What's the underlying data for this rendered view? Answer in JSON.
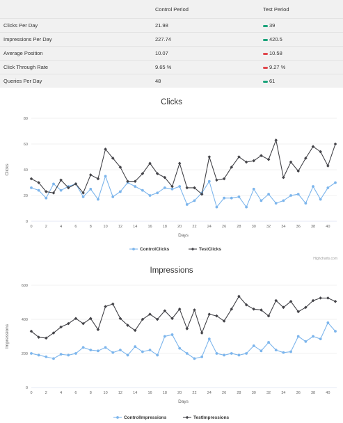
{
  "summary": {
    "headers": {
      "metric": "",
      "control": "Control Period",
      "test": "Test Period"
    },
    "rows": [
      {
        "metric": "Clicks Per Day",
        "control": "21.98",
        "test": "39",
        "status_color": "#1aa37a"
      },
      {
        "metric": "Impressions Per Day",
        "control": "227.74",
        "test": "420.5",
        "status_color": "#1aa37a"
      },
      {
        "metric": "Average Position",
        "control": "10.07",
        "test": "10.58",
        "status_color": "#e0474c"
      },
      {
        "metric": "Click Through Rate",
        "control": "9.65 %",
        "test": "9.27 %",
        "status_color": "#e0474c"
      },
      {
        "metric": "Queries Per Day",
        "control": "48",
        "test": "61",
        "status_color": "#1aa37a"
      }
    ]
  },
  "credits": "Highcharts.com",
  "chart_data": [
    {
      "type": "line",
      "title": "Clicks",
      "xlabel": "Days",
      "ylabel": "Clicks",
      "xlim": [
        0,
        41
      ],
      "ylim": [
        0,
        80
      ],
      "xticks": [
        0,
        2,
        4,
        6,
        8,
        10,
        12,
        14,
        16,
        18,
        20,
        22,
        24,
        26,
        28,
        30,
        32,
        34,
        36,
        38,
        40
      ],
      "yticks": [
        0,
        20,
        40,
        60,
        80
      ],
      "grid": true,
      "legend": "bottom-center",
      "x": [
        0,
        1,
        2,
        3,
        4,
        5,
        6,
        7,
        8,
        9,
        10,
        11,
        12,
        13,
        14,
        15,
        16,
        17,
        18,
        19,
        20,
        21,
        22,
        23,
        24,
        25,
        26,
        27,
        28,
        29,
        30,
        31,
        32,
        33,
        34,
        35,
        36,
        37,
        38,
        39,
        40,
        41
      ],
      "series": [
        {
          "name": "ControlClicks",
          "color": "#7cb5ec",
          "marker": "circle",
          "values": [
            26,
            24,
            18,
            29,
            24,
            27,
            29,
            19,
            25,
            17,
            35,
            19,
            23,
            30,
            27,
            24,
            20,
            22,
            26,
            25,
            27,
            13,
            16,
            22,
            31,
            11,
            18,
            18,
            19,
            11,
            25,
            16,
            21,
            14,
            16,
            20,
            21,
            14,
            27,
            17,
            26,
            30
          ]
        },
        {
          "name": "TestClicks",
          "color": "#434348",
          "marker": "diamond",
          "values": [
            33,
            30,
            23,
            22,
            32,
            26,
            29,
            22,
            36,
            33,
            56,
            49,
            42,
            31,
            31,
            37,
            45,
            37,
            34,
            27,
            45,
            26,
            26,
            21,
            50,
            32,
            33,
            42,
            50,
            46,
            47,
            51,
            48,
            63,
            34,
            46,
            39,
            49,
            58,
            54,
            43,
            60
          ]
        }
      ]
    },
    {
      "type": "line",
      "title": "Impressions",
      "xlabel": "Days",
      "ylabel": "Impressions",
      "xlim": [
        0,
        41
      ],
      "ylim": [
        0,
        600
      ],
      "xticks": [
        0,
        2,
        4,
        6,
        8,
        10,
        12,
        14,
        16,
        18,
        20,
        22,
        24,
        26,
        28,
        30,
        32,
        34,
        36,
        38,
        40
      ],
      "yticks": [
        0,
        200,
        400,
        600
      ],
      "grid": true,
      "legend": "bottom-center",
      "x": [
        0,
        1,
        2,
        3,
        4,
        5,
        6,
        7,
        8,
        9,
        10,
        11,
        12,
        13,
        14,
        15,
        16,
        17,
        18,
        19,
        20,
        21,
        22,
        23,
        24,
        25,
        26,
        27,
        28,
        29,
        30,
        31,
        32,
        33,
        34,
        35,
        36,
        37,
        38,
        39,
        40,
        41
      ],
      "series": [
        {
          "name": "ControlImpressions",
          "color": "#7cb5ec",
          "marker": "circle",
          "values": [
            200,
            190,
            180,
            170,
            195,
            190,
            200,
            235,
            220,
            215,
            235,
            205,
            220,
            190,
            240,
            210,
            220,
            190,
            300,
            310,
            230,
            200,
            170,
            180,
            285,
            200,
            190,
            200,
            190,
            200,
            245,
            215,
            265,
            220,
            205,
            210,
            300,
            270,
            300,
            285,
            380,
            330
          ]
        },
        {
          "name": "TestImpressions",
          "color": "#434348",
          "marker": "diamond",
          "values": [
            330,
            295,
            290,
            320,
            355,
            375,
            405,
            375,
            405,
            340,
            475,
            490,
            405,
            365,
            335,
            400,
            430,
            400,
            450,
            405,
            460,
            345,
            455,
            320,
            430,
            420,
            390,
            460,
            535,
            485,
            460,
            455,
            420,
            510,
            470,
            505,
            445,
            470,
            510,
            525,
            525,
            505
          ]
        }
      ]
    }
  ]
}
